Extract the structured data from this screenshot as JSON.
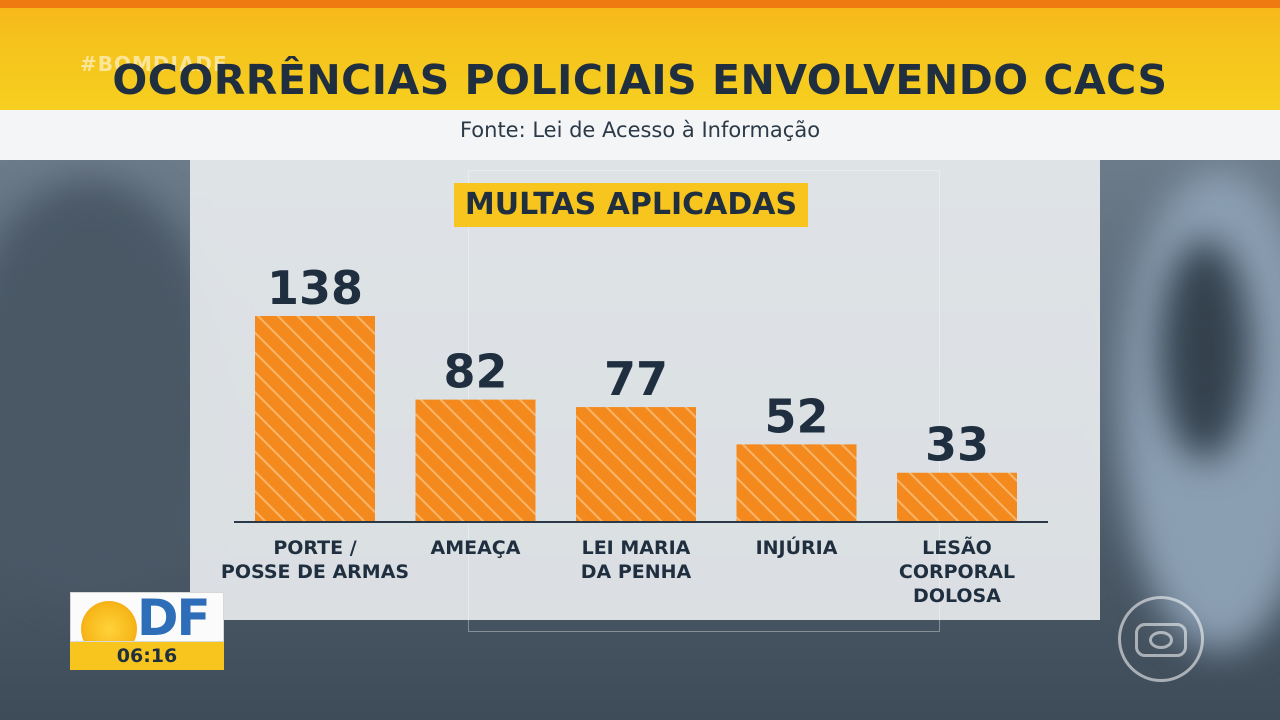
{
  "header": {
    "hashtag": "#BOMDIADF",
    "title": "OCORRÊNCIAS POLICIAIS ENVOLVENDO CACS",
    "source": "Fonte: Lei de Acesso à Informação"
  },
  "chart_data": {
    "type": "bar",
    "title": "MULTAS APLICADAS",
    "categories": [
      [
        "PORTE /",
        "POSSE DE ARMAS"
      ],
      [
        "AMEAÇA"
      ],
      [
        "LEI MARIA",
        "DA PENHA"
      ],
      [
        "INJÚRIA"
      ],
      [
        "LESÃO",
        "CORPORAL",
        "DOLOSA"
      ]
    ],
    "values": [
      138,
      82,
      77,
      52,
      33
    ],
    "value_labels": [
      "138",
      "82",
      "77",
      "52",
      "33"
    ],
    "ylim": [
      0,
      138
    ],
    "grid": false,
    "bar_color": "#f48a1e",
    "stripe_color": "#f9b56a",
    "axis_color": "#2c3a48",
    "label_color": "#1f2f3f"
  },
  "overlay": {
    "logo_text": "DF",
    "clock": "06:16"
  }
}
